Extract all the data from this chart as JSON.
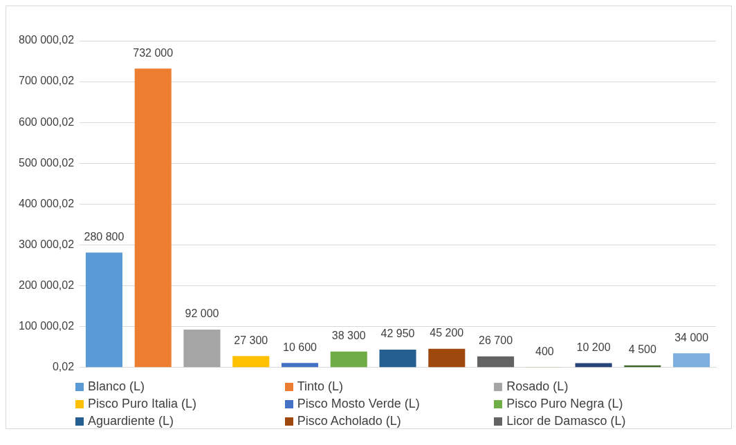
{
  "chart_data": {
    "type": "bar",
    "categories": [
      null,
      null,
      null,
      null,
      null,
      null,
      null,
      null,
      null,
      null,
      null,
      null,
      null
    ],
    "series": [
      {
        "name": "Blanco (L)",
        "color": "#5b9bd5",
        "values": [
          280800,
          null,
          null,
          null,
          null,
          null,
          null,
          null,
          null,
          null,
          null,
          null,
          null
        ],
        "value_labels": [
          "280 800",
          null,
          null,
          null,
          null,
          null,
          null,
          null,
          null,
          null,
          null,
          null,
          null
        ]
      },
      {
        "name": "Tinto (L)",
        "color": "#ed7d31",
        "values": [
          null,
          732000,
          null,
          null,
          null,
          null,
          null,
          null,
          null,
          null,
          null,
          null,
          null
        ],
        "value_labels": [
          null,
          "732 000",
          null,
          null,
          null,
          null,
          null,
          null,
          null,
          null,
          null,
          null,
          null
        ]
      },
      {
        "name": "Rosado (L)",
        "color": "#a5a5a5",
        "values": [
          null,
          null,
          92000,
          null,
          null,
          null,
          null,
          null,
          null,
          null,
          null,
          null,
          null
        ],
        "value_labels": [
          null,
          null,
          "92 000",
          null,
          null,
          null,
          null,
          null,
          null,
          null,
          null,
          null,
          null
        ]
      },
      {
        "name": "Pisco Puro Italia (L)",
        "color": "#ffc000",
        "values": [
          null,
          null,
          null,
          27300,
          null,
          null,
          null,
          null,
          null,
          null,
          null,
          null,
          null
        ],
        "value_labels": [
          null,
          null,
          null,
          "27 300",
          null,
          null,
          null,
          null,
          null,
          null,
          null,
          null,
          null
        ]
      },
      {
        "name": "Pisco Mosto Verde (L)",
        "color": "#4472c4",
        "values": [
          null,
          null,
          null,
          null,
          10600,
          null,
          null,
          null,
          null,
          null,
          null,
          null,
          null
        ],
        "value_labels": [
          null,
          null,
          null,
          null,
          "10 600",
          null,
          null,
          null,
          null,
          null,
          null,
          null,
          null
        ]
      },
      {
        "name": "Pisco Puro Negra (L)",
        "color": "#70ad47",
        "values": [
          null,
          null,
          null,
          null,
          null,
          38300,
          null,
          null,
          null,
          null,
          null,
          null,
          null
        ],
        "value_labels": [
          null,
          null,
          null,
          null,
          null,
          "38 300",
          null,
          null,
          null,
          null,
          null,
          null,
          null
        ]
      },
      {
        "name": "Aguardiente (L)",
        "color": "#255e91",
        "values": [
          null,
          null,
          null,
          null,
          null,
          null,
          42950,
          null,
          null,
          null,
          null,
          null,
          null
        ],
        "value_labels": [
          null,
          null,
          null,
          null,
          null,
          null,
          "42 950",
          null,
          null,
          null,
          null,
          null,
          null
        ]
      },
      {
        "name": "Pisco Acholado (L)",
        "color": "#9e480e",
        "values": [
          null,
          null,
          null,
          null,
          null,
          null,
          null,
          45200,
          null,
          null,
          null,
          null,
          null
        ],
        "value_labels": [
          null,
          null,
          null,
          null,
          null,
          null,
          null,
          "45 200",
          null,
          null,
          null,
          null,
          null
        ]
      },
      {
        "name": "Licor de Damasco (L)",
        "color": "#636363",
        "values": [
          null,
          null,
          null,
          null,
          null,
          null,
          null,
          null,
          26700,
          null,
          null,
          null,
          null
        ],
        "value_labels": [
          null,
          null,
          null,
          null,
          null,
          null,
          null,
          null,
          "26 700",
          null,
          null,
          null,
          null
        ]
      },
      {
        "color": "#997300",
        "values": [
          null,
          null,
          null,
          null,
          null,
          null,
          null,
          null,
          null,
          400,
          null,
          null,
          null
        ],
        "value_labels": [
          null,
          null,
          null,
          null,
          null,
          null,
          null,
          null,
          null,
          "400",
          null,
          null,
          null
        ]
      },
      {
        "color": "#264478",
        "values": [
          null,
          null,
          null,
          null,
          null,
          null,
          null,
          null,
          null,
          null,
          10200,
          null,
          null
        ],
        "value_labels": [
          null,
          null,
          null,
          null,
          null,
          null,
          null,
          null,
          null,
          null,
          "10 200",
          null,
          null
        ]
      },
      {
        "color": "#43682b",
        "values": [
          null,
          null,
          null,
          null,
          null,
          null,
          null,
          null,
          null,
          null,
          null,
          4500,
          null
        ],
        "value_labels": [
          null,
          null,
          null,
          null,
          null,
          null,
          null,
          null,
          null,
          null,
          null,
          "4 500",
          null
        ]
      },
      {
        "color": "#7cafdd",
        "values": [
          null,
          null,
          null,
          null,
          null,
          null,
          null,
          null,
          null,
          null,
          null,
          null,
          34000
        ],
        "value_labels": [
          null,
          null,
          null,
          null,
          null,
          null,
          null,
          null,
          null,
          null,
          null,
          null,
          "34 000"
        ]
      }
    ],
    "ylim": [
      0.02,
      800000.02
    ],
    "yticks": [
      {
        "value": 0.02,
        "label": "0,02"
      },
      {
        "value": 100000.02,
        "label": "100 000,02"
      },
      {
        "value": 200000.02,
        "label": "200 000,02"
      },
      {
        "value": 300000.02,
        "label": "300 000,02"
      },
      {
        "value": 400000.02,
        "label": "400 000,02"
      },
      {
        "value": 500000.02,
        "label": "500 000,02"
      },
      {
        "value": 600000.02,
        "label": "600 000,02"
      },
      {
        "value": 700000.02,
        "label": "700 000,02"
      },
      {
        "value": 800000.02,
        "label": "800 000,02"
      }
    ],
    "grid": "y",
    "tick_labels": "y",
    "legend": "bottom"
  }
}
